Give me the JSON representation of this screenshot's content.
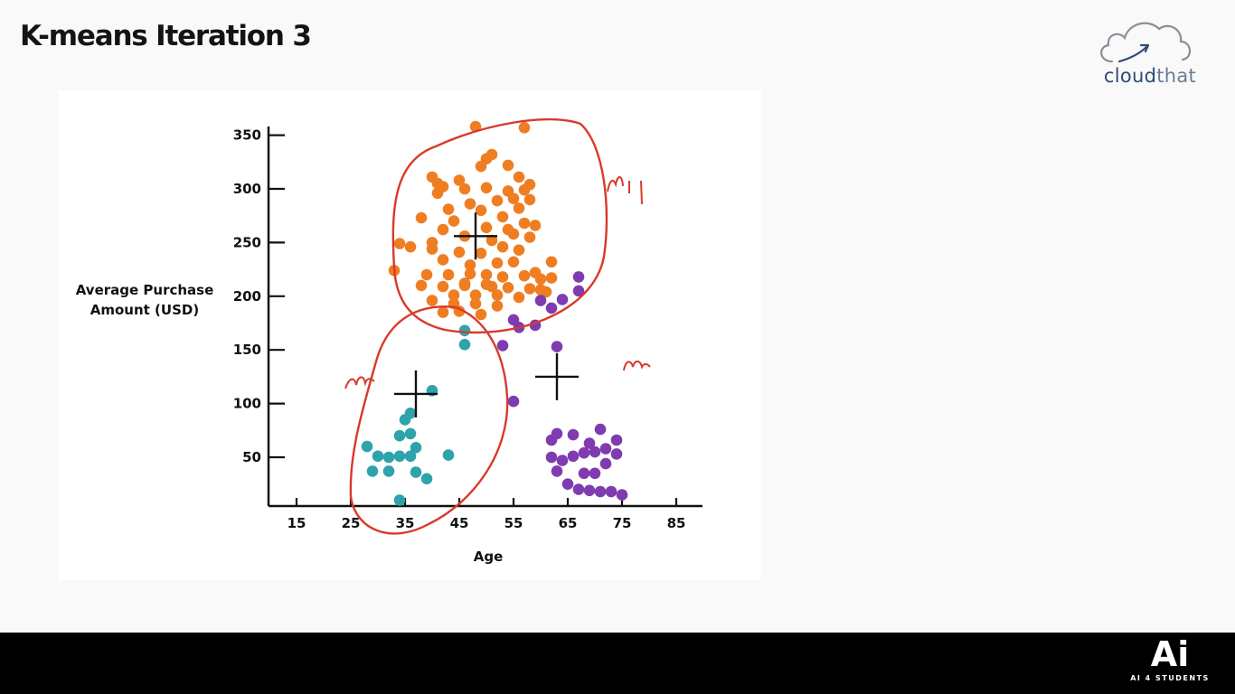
{
  "slide": {
    "title": "K-means Iteration 3"
  },
  "brand": {
    "logo_text_a": "cloud",
    "logo_text_b": "that",
    "footer_logo_mark": "Ai",
    "footer_logo_text": "AI 4 STUDENTS",
    "icon": "cloud-arrow-icon"
  },
  "chart_data": {
    "type": "scatter",
    "xlabel": "Age",
    "ylabel_lines": [
      "Average Purchase",
      "Amount (USD)"
    ],
    "x_ticks": [
      15,
      25,
      35,
      45,
      55,
      65,
      75,
      85
    ],
    "y_ticks": [
      50,
      100,
      150,
      200,
      250,
      300,
      350
    ],
    "xlim": [
      10,
      90
    ],
    "ylim": [
      0,
      355
    ],
    "grid": false,
    "legend": "none",
    "colors": {
      "orange": "#ef7e22",
      "teal": "#2ea3ab",
      "purple": "#7f3bb0",
      "annotation": "#d83a2a",
      "centroid": "#111111"
    },
    "centroids": [
      {
        "x": 48,
        "y": 256
      },
      {
        "x": 37,
        "y": 109
      },
      {
        "x": 63,
        "y": 125
      }
    ],
    "series": [
      {
        "color": "#ef7e22",
        "points": [
          [
            48,
            358
          ],
          [
            57,
            357
          ],
          [
            51,
            332
          ],
          [
            50,
            328
          ],
          [
            40,
            311
          ],
          [
            41,
            305
          ],
          [
            45,
            308
          ],
          [
            49,
            321
          ],
          [
            54,
            322
          ],
          [
            56,
            311
          ],
          [
            42,
            302
          ],
          [
            46,
            300
          ],
          [
            50,
            301
          ],
          [
            54,
            298
          ],
          [
            57,
            299
          ],
          [
            58,
            304
          ],
          [
            41,
            296
          ],
          [
            47,
            286
          ],
          [
            52,
            289
          ],
          [
            55,
            291
          ],
          [
            58,
            290
          ],
          [
            43,
            281
          ],
          [
            49,
            280
          ],
          [
            53,
            274
          ],
          [
            56,
            282
          ],
          [
            38,
            273
          ],
          [
            44,
            270
          ],
          [
            50,
            264
          ],
          [
            54,
            262
          ],
          [
            57,
            268
          ],
          [
            59,
            266
          ],
          [
            42,
            262
          ],
          [
            46,
            256
          ],
          [
            51,
            252
          ],
          [
            55,
            258
          ],
          [
            58,
            255
          ],
          [
            34,
            249
          ],
          [
            36,
            246
          ],
          [
            40,
            244
          ],
          [
            45,
            241
          ],
          [
            49,
            240
          ],
          [
            53,
            246
          ],
          [
            56,
            243
          ],
          [
            42,
            234
          ],
          [
            47,
            229
          ],
          [
            52,
            231
          ],
          [
            55,
            232
          ],
          [
            39,
            220
          ],
          [
            43,
            220
          ],
          [
            47,
            221
          ],
          [
            50,
            220
          ],
          [
            53,
            218
          ],
          [
            57,
            219
          ],
          [
            60,
            216
          ],
          [
            62,
            217
          ],
          [
            33,
            224
          ],
          [
            38,
            210
          ],
          [
            42,
            209
          ],
          [
            46,
            210
          ],
          [
            50,
            211
          ],
          [
            54,
            208
          ],
          [
            58,
            207
          ],
          [
            44,
            201
          ],
          [
            48,
            201
          ],
          [
            52,
            201
          ],
          [
            56,
            199
          ],
          [
            40,
            196
          ],
          [
            44,
            193
          ],
          [
            48,
            193
          ],
          [
            52,
            191
          ],
          [
            45,
            186
          ],
          [
            49,
            183
          ],
          [
            42,
            185
          ],
          [
            60,
            206
          ],
          [
            59,
            222
          ],
          [
            61,
            204
          ],
          [
            46,
            212
          ],
          [
            40,
            250
          ],
          [
            62,
            232
          ],
          [
            51,
            209
          ]
        ]
      },
      {
        "color": "#2ea3ab",
        "points": [
          [
            46,
            168
          ],
          [
            46,
            155
          ],
          [
            40,
            112
          ],
          [
            35,
            85
          ],
          [
            36,
            91
          ],
          [
            34,
            70
          ],
          [
            36,
            72
          ],
          [
            28,
            60
          ],
          [
            30,
            51
          ],
          [
            32,
            50
          ],
          [
            34,
            51
          ],
          [
            36,
            51
          ],
          [
            37,
            59
          ],
          [
            43,
            52
          ],
          [
            29,
            37
          ],
          [
            32,
            37
          ],
          [
            37,
            36
          ],
          [
            39,
            30
          ],
          [
            34,
            10
          ]
        ]
      },
      {
        "color": "#7f3bb0",
        "points": [
          [
            67,
            218
          ],
          [
            67,
            205
          ],
          [
            60,
            196
          ],
          [
            64,
            197
          ],
          [
            62,
            189
          ],
          [
            55,
            178
          ],
          [
            56,
            171
          ],
          [
            59,
            173
          ],
          [
            53,
            154
          ],
          [
            63,
            153
          ],
          [
            55,
            102
          ],
          [
            63,
            72
          ],
          [
            62,
            66
          ],
          [
            66,
            71
          ],
          [
            69,
            63
          ],
          [
            71,
            76
          ],
          [
            74,
            66
          ],
          [
            72,
            58
          ],
          [
            62,
            50
          ],
          [
            64,
            47
          ],
          [
            66,
            51
          ],
          [
            68,
            54
          ],
          [
            70,
            55
          ],
          [
            74,
            53
          ],
          [
            72,
            44
          ],
          [
            63,
            37
          ],
          [
            68,
            35
          ],
          [
            65,
            25
          ],
          [
            67,
            20
          ],
          [
            69,
            19
          ],
          [
            71,
            18
          ],
          [
            73,
            18
          ],
          [
            75,
            15
          ],
          [
            70,
            35
          ]
        ]
      }
    ],
    "annotations": [
      "m1",
      "m",
      "m"
    ]
  }
}
